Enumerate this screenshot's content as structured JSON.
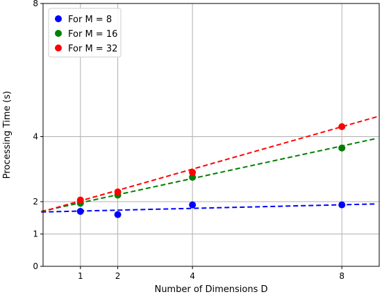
{
  "chart_data": {
    "type": "scatter",
    "xlabel": "Number of Dimensions D",
    "ylabel": "Processing Time (s)",
    "x_ticks": [
      1,
      2,
      4,
      8
    ],
    "y_ticks": [
      0,
      1,
      2,
      4,
      8
    ],
    "xlim": [
      0.0,
      9.0
    ],
    "ylim": [
      0,
      8
    ],
    "y_scale": "custom-piecewise",
    "grid": true,
    "legend_position": "top-left",
    "series": [
      {
        "name": "For M = 8",
        "color": "#0000ff",
        "points": [
          [
            1,
            1.7
          ],
          [
            2,
            1.6
          ],
          [
            4,
            1.9
          ],
          [
            8,
            1.9
          ]
        ],
        "fit_line": [
          [
            -0.05,
            1.68
          ],
          [
            8.95,
            1.93
          ]
        ]
      },
      {
        "name": "For M = 16",
        "color": "#008000",
        "points": [
          [
            1,
            1.95
          ],
          [
            2,
            2.2
          ],
          [
            4,
            2.75
          ],
          [
            8,
            3.65
          ]
        ],
        "fit_line": [
          [
            -0.05,
            1.7
          ],
          [
            8.95,
            3.95
          ]
        ]
      },
      {
        "name": "For M = 32",
        "color": "#ff0000",
        "points": [
          [
            1,
            2.05
          ],
          [
            2,
            2.3
          ],
          [
            4,
            2.9
          ],
          [
            8,
            4.3
          ]
        ],
        "fit_line": [
          [
            -0.05,
            1.68
          ],
          [
            8.95,
            4.6
          ]
        ]
      }
    ]
  }
}
